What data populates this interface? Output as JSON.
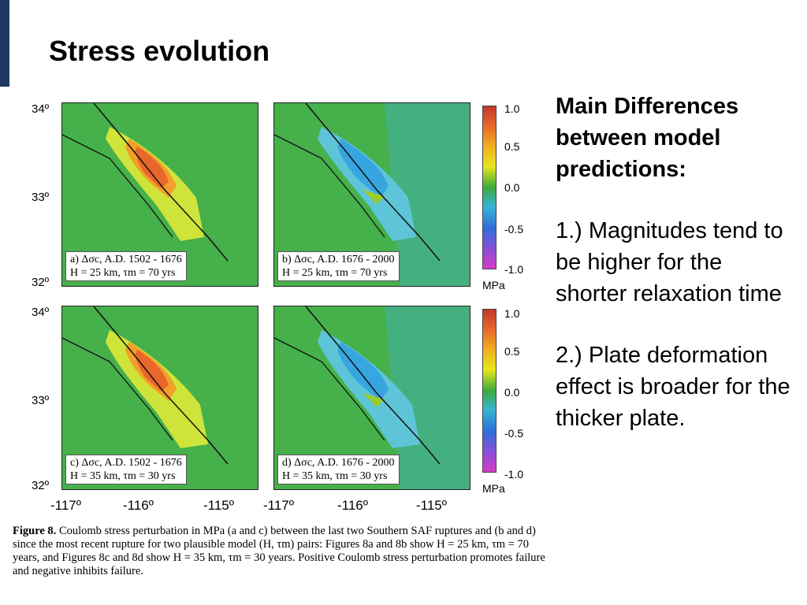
{
  "slide": {
    "title": "Stress evolution",
    "accent_color": "#1f3864"
  },
  "side_text": {
    "heading": "Main Differences between model predictions:",
    "point1": "1.) Magnitudes tend to be higher for the shorter relaxation time",
    "point2": "2.) Plate deformation effect is broader for the thicker plate."
  },
  "figure": {
    "lat_labels": [
      "34º",
      "33º",
      "32º"
    ],
    "lon_labels": [
      "-117º",
      "-116º",
      "-115º"
    ],
    "colorbar": {
      "ticks": [
        "1.0",
        "0.5",
        "0.0",
        "-0.5",
        "-1.0"
      ],
      "unit": "MPa"
    },
    "panels": [
      {
        "id": "a",
        "line1": "a) Δσc, A.D. 1502 - 1676",
        "line2": "H = 25 km, τm = 70 yrs",
        "state": "positive"
      },
      {
        "id": "b",
        "line1": "b) Δσc, A.D. 1676 - 2000",
        "line2": "H = 25 km, τm = 70 yrs",
        "state": "negative"
      },
      {
        "id": "c",
        "line1": "c) Δσc, A.D. 1502 - 1676",
        "line2": "H = 35 km, τm = 30 yrs",
        "state": "positive"
      },
      {
        "id": "d",
        "line1": "d) Δσc, A.D. 1676 - 2000",
        "line2": "H = 35 km, τm = 30 yrs",
        "state": "negative"
      }
    ],
    "caption_label": "Figure 8.",
    "caption_text": "Coulomb stress perturbation in MPa (a and c) between the last two Southern SAF ruptures and (b and d) since the most recent rupture for two plausible model (H, τm) pairs: Figures 8a and 8b show H = 25 km, τm = 70 years, and Figures 8c and 8d show H = 35 km, τm = 30 years. Positive Coulomb stress perturbation promotes failure and negative inhibits failure."
  }
}
